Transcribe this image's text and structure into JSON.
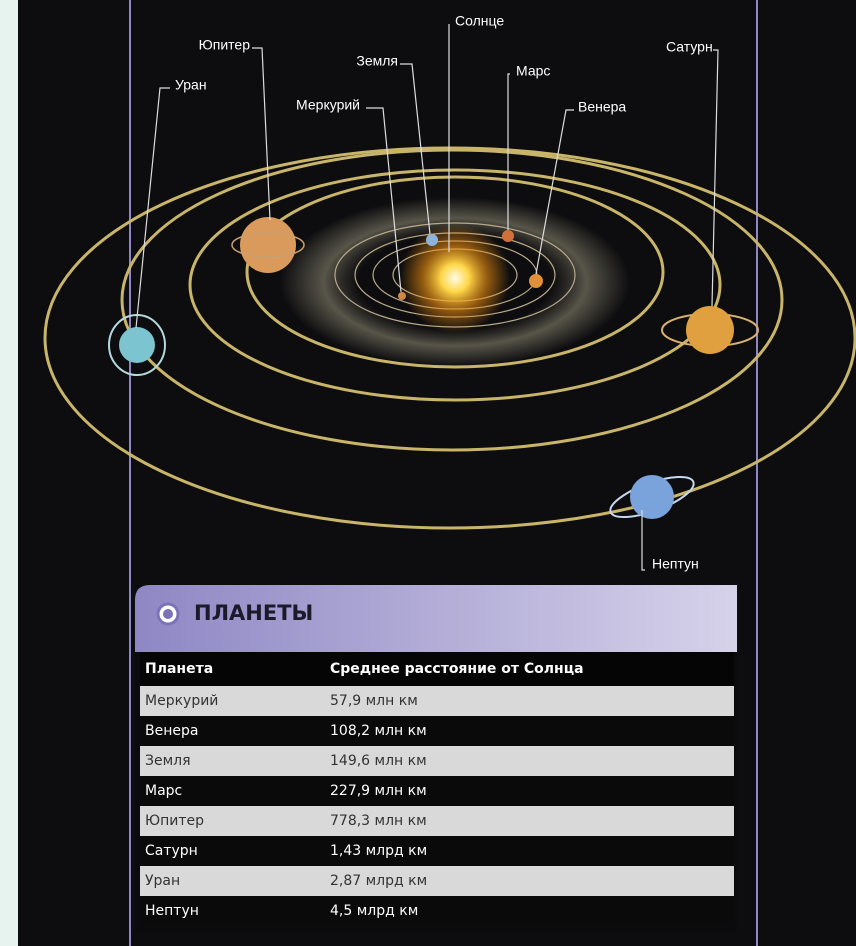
{
  "diagram": {
    "labels": {
      "sun": "Солнце",
      "mercury": "Меркурий",
      "venus": "Венера",
      "earth": "Земля",
      "mars": "Марс",
      "jupiter": "Юпитер",
      "saturn": "Сатурн",
      "uranus": "Уран",
      "neptune": "Нептун"
    }
  },
  "table": {
    "title": "ПЛАНЕТЫ",
    "header": [
      "Планета",
      "Среднее расстояние от Солнца"
    ],
    "rows": [
      [
        "Меркурий",
        "57,9 млн км"
      ],
      [
        "Венера",
        "108,2 млн км"
      ],
      [
        "Земля",
        "149,6 млн км"
      ],
      [
        "Марс",
        "227,9 млн км"
      ],
      [
        "Юпитер",
        "778,3 млн км"
      ],
      [
        "Сатурн",
        "1,43 млрд км"
      ],
      [
        "Уран",
        "2,87 млрд км"
      ],
      [
        "Нептун",
        "4,5 млрд км"
      ]
    ]
  }
}
